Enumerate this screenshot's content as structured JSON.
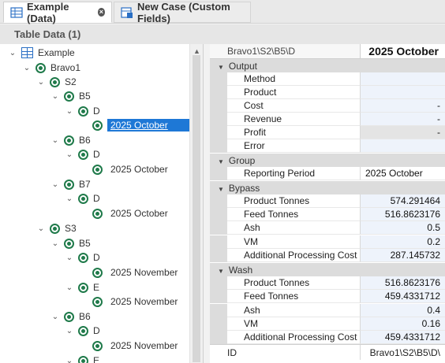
{
  "tabs": [
    {
      "label": "Example (Data)",
      "icon": "table-grid-icon",
      "closable": true,
      "active": true
    },
    {
      "label": "New Case (Custom Fields)",
      "icon": "case-form-icon",
      "active": false
    }
  ],
  "section_title": "Table Data (1)",
  "tree": [
    {
      "label": "Example",
      "icon": "table-grid-icon",
      "expanded": true
    },
    {
      "label": "Bravo1",
      "icon": "node-icon",
      "expanded": true
    },
    {
      "label": "S2",
      "icon": "node-icon",
      "expanded": true
    },
    {
      "label": "B5",
      "icon": "node-icon",
      "expanded": true
    },
    {
      "label": "D",
      "icon": "node-icon",
      "expanded": true
    },
    {
      "label": "2025 October",
      "icon": "node-icon",
      "selected": true
    },
    {
      "label": "B6",
      "icon": "node-icon",
      "expanded": true
    },
    {
      "label": "D",
      "icon": "node-icon",
      "expanded": true
    },
    {
      "label": "2025 October",
      "icon": "node-icon"
    },
    {
      "label": "B7",
      "icon": "node-icon",
      "expanded": true
    },
    {
      "label": "D",
      "icon": "node-icon",
      "expanded": true
    },
    {
      "label": "2025 October",
      "icon": "node-icon"
    },
    {
      "label": "S3",
      "icon": "node-icon",
      "expanded": true
    },
    {
      "label": "B5",
      "icon": "node-icon",
      "expanded": true
    },
    {
      "label": "D",
      "icon": "node-icon",
      "expanded": true
    },
    {
      "label": "2025 November",
      "icon": "node-icon"
    },
    {
      "label": "E",
      "icon": "node-icon",
      "expanded": true
    },
    {
      "label": "2025 November",
      "icon": "node-icon"
    },
    {
      "label": "B6",
      "icon": "node-icon",
      "expanded": true
    },
    {
      "label": "D",
      "icon": "node-icon",
      "expanded": true
    },
    {
      "label": "2025 November",
      "icon": "node-icon"
    },
    {
      "label": "E",
      "icon": "node-icon",
      "expanded": true
    }
  ],
  "grid": {
    "header_path": "Bravo1\\S2\\B5\\D",
    "header_value": "2025 October",
    "categories": [
      {
        "name": "Output",
        "rows": [
          {
            "label": "Method",
            "value": "",
            "style": "blue"
          },
          {
            "label": "Product",
            "value": "",
            "style": "blue"
          },
          {
            "label": "Cost",
            "value": "-",
            "style": "blue"
          },
          {
            "label": "Revenue",
            "value": "-",
            "style": "blue"
          },
          {
            "label": "Profit",
            "value": "-",
            "style": "gray"
          },
          {
            "label": "Error",
            "value": "",
            "style": "blue"
          }
        ]
      },
      {
        "name": "Group",
        "rows": [
          {
            "label": "Reporting Period",
            "value": "2025 October",
            "style": "plain"
          }
        ]
      },
      {
        "name": "Bypass",
        "rows": [
          {
            "label": "Product Tonnes",
            "value": "574.291464",
            "style": "blue"
          },
          {
            "label": "Feed Tonnes",
            "value": "516.8623176",
            "style": "blue"
          },
          {
            "label": "Ash",
            "value": "0.5",
            "style": "blue"
          },
          {
            "label": "VM",
            "value": "0.2",
            "style": "blue"
          },
          {
            "label": "Additional Processing Cost",
            "value": "287.145732",
            "style": "blue"
          }
        ]
      },
      {
        "name": "Wash",
        "rows": [
          {
            "label": "Product Tonnes",
            "value": "516.8623176",
            "style": "blue"
          },
          {
            "label": "Feed Tonnes",
            "value": "459.4331712",
            "style": "blue"
          },
          {
            "label": "Ash",
            "value": "0.4",
            "style": "blue"
          },
          {
            "label": "VM",
            "value": "0.16",
            "style": "blue"
          },
          {
            "label": "Additional Processing Cost",
            "value": "459.4331712",
            "style": "blue"
          }
        ]
      }
    ],
    "id_label": "ID",
    "id_value": "Bravo1\\S2\\B5\\D\\"
  }
}
